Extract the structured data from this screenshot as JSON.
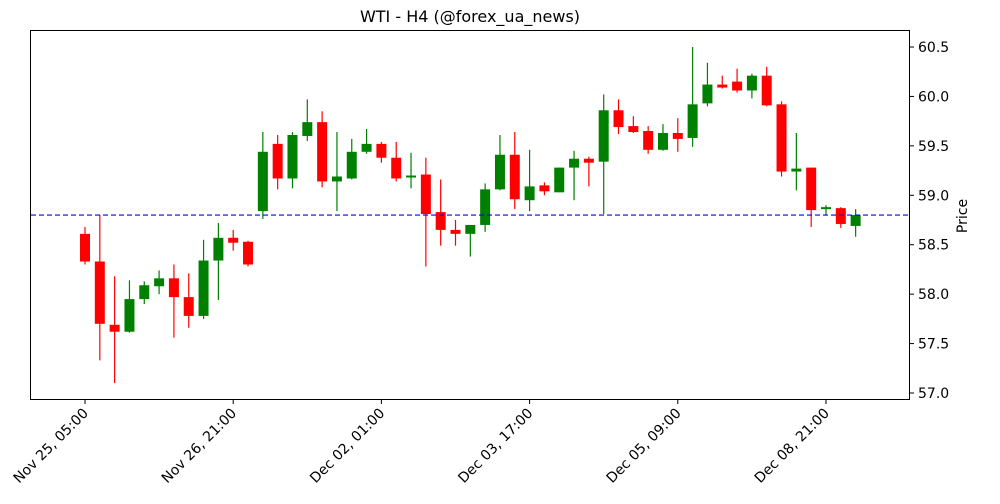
{
  "chart_data": {
    "type": "candlestick",
    "title": "WTI - H4 (@forex_ua_news)",
    "xlabel": "",
    "ylabel": "Price",
    "y_axis_side": "right",
    "ylim": [
      56.94,
      60.67
    ],
    "yticks": [
      57.0,
      57.5,
      58.0,
      58.5,
      59.0,
      59.5,
      60.0,
      60.5
    ],
    "ytick_labels": [
      "57.0",
      "57.5",
      "58.0",
      "58.5",
      "59.0",
      "59.5",
      "60.0",
      "60.5"
    ],
    "xtick_indices": [
      0,
      10,
      20,
      30,
      40,
      50
    ],
    "xtick_labels": [
      "Nov 25, 05:00",
      "Nov 26, 21:00",
      "Dec 02, 01:00",
      "Dec 03, 17:00",
      "Dec 05, 09:00",
      "Dec 08, 21:00"
    ],
    "grid": false,
    "legend": null,
    "hline": {
      "value": 58.8,
      "style": "dashed",
      "color": "#0000ff"
    },
    "colors": {
      "up": "#008000",
      "down": "#ff0000"
    },
    "candles": [
      {
        "o": 58.61,
        "h": 58.68,
        "l": 58.3,
        "c": 58.33
      },
      {
        "o": 58.33,
        "h": 58.8,
        "l": 57.33,
        "c": 57.7
      },
      {
        "o": 57.69,
        "h": 58.18,
        "l": 57.1,
        "c": 57.62
      },
      {
        "o": 57.62,
        "h": 58.14,
        "l": 57.61,
        "c": 57.95
      },
      {
        "o": 57.95,
        "h": 58.13,
        "l": 57.9,
        "c": 58.09
      },
      {
        "o": 58.08,
        "h": 58.24,
        "l": 58.0,
        "c": 58.16
      },
      {
        "o": 58.16,
        "h": 58.3,
        "l": 57.56,
        "c": 57.97
      },
      {
        "o": 57.97,
        "h": 58.21,
        "l": 57.66,
        "c": 57.78
      },
      {
        "o": 57.78,
        "h": 58.55,
        "l": 57.75,
        "c": 58.34
      },
      {
        "o": 58.34,
        "h": 58.72,
        "l": 57.94,
        "c": 58.57
      },
      {
        "o": 58.57,
        "h": 58.65,
        "l": 58.44,
        "c": 58.52
      },
      {
        "o": 58.53,
        "h": 58.54,
        "l": 58.28,
        "c": 58.3
      },
      {
        "o": 58.84,
        "h": 59.64,
        "l": 58.76,
        "c": 59.44
      },
      {
        "o": 59.52,
        "h": 59.61,
        "l": 59.06,
        "c": 59.17
      },
      {
        "o": 59.17,
        "h": 59.64,
        "l": 59.07,
        "c": 59.61
      },
      {
        "o": 59.6,
        "h": 59.97,
        "l": 59.55,
        "c": 59.74
      },
      {
        "o": 59.74,
        "h": 59.85,
        "l": 59.08,
        "c": 59.14
      },
      {
        "o": 59.14,
        "h": 59.64,
        "l": 58.84,
        "c": 59.19
      },
      {
        "o": 59.17,
        "h": 59.57,
        "l": 59.16,
        "c": 59.44
      },
      {
        "o": 59.44,
        "h": 59.67,
        "l": 59.42,
        "c": 59.52
      },
      {
        "o": 59.52,
        "h": 59.54,
        "l": 59.33,
        "c": 59.38
      },
      {
        "o": 59.38,
        "h": 59.54,
        "l": 59.14,
        "c": 59.17
      },
      {
        "o": 59.18,
        "h": 59.43,
        "l": 59.07,
        "c": 59.2
      },
      {
        "o": 59.21,
        "h": 59.38,
        "l": 58.28,
        "c": 58.81
      },
      {
        "o": 58.83,
        "h": 59.16,
        "l": 58.49,
        "c": 58.65
      },
      {
        "o": 58.65,
        "h": 58.75,
        "l": 58.49,
        "c": 58.61
      },
      {
        "o": 58.61,
        "h": 58.7,
        "l": 58.38,
        "c": 58.7
      },
      {
        "o": 58.7,
        "h": 59.12,
        "l": 58.63,
        "c": 59.06
      },
      {
        "o": 59.06,
        "h": 59.61,
        "l": 59.05,
        "c": 59.41
      },
      {
        "o": 59.41,
        "h": 59.64,
        "l": 58.86,
        "c": 58.96
      },
      {
        "o": 58.95,
        "h": 59.46,
        "l": 58.84,
        "c": 59.09
      },
      {
        "o": 59.1,
        "h": 59.13,
        "l": 59.0,
        "c": 59.04
      },
      {
        "o": 59.03,
        "h": 59.28,
        "l": 59.03,
        "c": 59.28
      },
      {
        "o": 59.28,
        "h": 59.45,
        "l": 58.95,
        "c": 59.37
      },
      {
        "o": 59.37,
        "h": 59.39,
        "l": 59.09,
        "c": 59.33
      },
      {
        "o": 59.34,
        "h": 60.02,
        "l": 58.81,
        "c": 59.86
      },
      {
        "o": 59.86,
        "h": 59.97,
        "l": 59.62,
        "c": 59.69
      },
      {
        "o": 59.7,
        "h": 59.8,
        "l": 59.63,
        "c": 59.64
      },
      {
        "o": 59.65,
        "h": 59.7,
        "l": 59.42,
        "c": 59.46
      },
      {
        "o": 59.46,
        "h": 59.72,
        "l": 59.45,
        "c": 59.63
      },
      {
        "o": 59.63,
        "h": 59.78,
        "l": 59.44,
        "c": 59.57
      },
      {
        "o": 59.58,
        "h": 60.5,
        "l": 59.49,
        "c": 59.92
      },
      {
        "o": 59.93,
        "h": 60.34,
        "l": 59.9,
        "c": 60.12
      },
      {
        "o": 60.12,
        "h": 60.21,
        "l": 60.08,
        "c": 60.09
      },
      {
        "o": 60.15,
        "h": 60.28,
        "l": 60.04,
        "c": 60.06
      },
      {
        "o": 60.06,
        "h": 60.23,
        "l": 59.98,
        "c": 60.21
      },
      {
        "o": 60.21,
        "h": 60.3,
        "l": 59.9,
        "c": 59.91
      },
      {
        "o": 59.92,
        "h": 59.95,
        "l": 59.19,
        "c": 59.24
      },
      {
        "o": 59.24,
        "h": 59.63,
        "l": 59.05,
        "c": 59.27
      },
      {
        "o": 59.28,
        "h": 59.28,
        "l": 58.68,
        "c": 58.85
      },
      {
        "o": 58.86,
        "h": 58.9,
        "l": 58.8,
        "c": 58.88
      },
      {
        "o": 58.87,
        "h": 58.88,
        "l": 58.67,
        "c": 58.71
      },
      {
        "o": 58.69,
        "h": 58.86,
        "l": 58.58,
        "c": 58.8
      }
    ]
  }
}
